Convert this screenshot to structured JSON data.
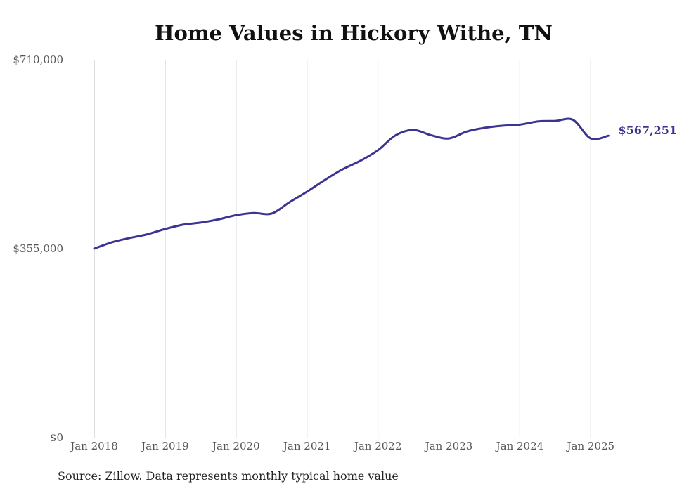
{
  "chart_data": {
    "type": "line",
    "title": "Home Values in Hickory Withe, TN",
    "source": "Source: Zillow. Data represents monthly typical home value",
    "ylim": [
      0,
      710000
    ],
    "y_ticks": [
      "$0",
      "$355,000",
      "$710,000"
    ],
    "x_ticks": [
      "Jan 2018",
      "Jan 2019",
      "Jan 2020",
      "Jan 2021",
      "Jan 2022",
      "Jan 2023",
      "Jan 2024",
      "Jan 2025"
    ],
    "grid": "vertical",
    "line_color": "#3b3491",
    "end_label": "$567,251",
    "series": [
      {
        "x": [
          "2018-01",
          "2018-04",
          "2018-07",
          "2018-10",
          "2019-01",
          "2019-04",
          "2019-07",
          "2019-10",
          "2020-01",
          "2020-04",
          "2020-07",
          "2020-10",
          "2021-01",
          "2021-04",
          "2021-07",
          "2021-10",
          "2022-01",
          "2022-04",
          "2022-07",
          "2022-10",
          "2023-01",
          "2023-04",
          "2023-07",
          "2023-10",
          "2024-01",
          "2024-04",
          "2024-07",
          "2024-10",
          "2025-01",
          "2025-04"
        ],
        "y": [
          355000,
          367000,
          375000,
          382000,
          392000,
          400000,
          404000,
          410000,
          418000,
          422000,
          421000,
          442000,
          462000,
          484000,
          504000,
          520000,
          540000,
          568000,
          578000,
          568000,
          562000,
          575000,
          582000,
          586000,
          588000,
          594000,
          595000,
          597000,
          562000,
          567251
        ]
      }
    ]
  }
}
